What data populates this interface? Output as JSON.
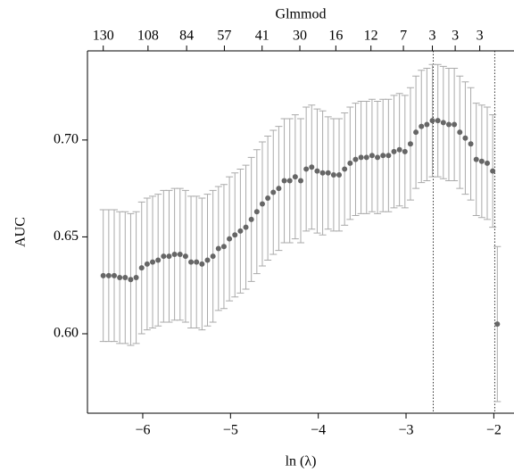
{
  "chart_data": {
    "type": "errorbar",
    "title": "Glmmod",
    "x_label": "ln (λ)",
    "y_label": "AUC",
    "color": "#666666",
    "error_color": "#aaaaaa",
    "x": [
      -6.45,
      -6.3875,
      -6.325,
      -6.2625,
      -6.2,
      -6.1375,
      -6.075,
      -6.0125,
      -5.95,
      -5.8875,
      -5.825,
      -5.7625,
      -5.7,
      -5.6375,
      -5.575,
      -5.5125,
      -5.45,
      -5.3875,
      -5.325,
      -5.2625,
      -5.2,
      -5.1375,
      -5.075,
      -5.0125,
      -4.95,
      -4.8875,
      -4.825,
      -4.7625,
      -4.7,
      -4.6375,
      -4.575,
      -4.5125,
      -4.45,
      -4.3875,
      -4.325,
      -4.2625,
      -4.2,
      -4.1375,
      -4.075,
      -4.0125,
      -3.95,
      -3.8875,
      -3.825,
      -3.7625,
      -3.7,
      -3.6375,
      -3.575,
      -3.5125,
      -3.45,
      -3.3875,
      -3.325,
      -3.2625,
      -3.2,
      -3.1375,
      -3.075,
      -3.0125,
      -2.95,
      -2.8875,
      -2.825,
      -2.7625,
      -2.7,
      -2.6375,
      -2.575,
      -2.5125,
      -2.45,
      -2.3875,
      -2.325,
      -2.2625,
      -2.2,
      -2.1375,
      -2.075,
      -2.0125,
      -1.96
    ],
    "values": [
      0.63,
      0.63,
      0.63,
      0.629,
      0.629,
      0.628,
      0.629,
      0.634,
      0.636,
      0.637,
      0.638,
      0.64,
      0.64,
      0.641,
      0.641,
      0.64,
      0.637,
      0.637,
      0.636,
      0.638,
      0.64,
      0.644,
      0.645,
      0.649,
      0.651,
      0.653,
      0.655,
      0.659,
      0.663,
      0.667,
      0.67,
      0.673,
      0.675,
      0.679,
      0.679,
      0.681,
      0.679,
      0.685,
      0.686,
      0.684,
      0.683,
      0.683,
      0.682,
      0.682,
      0.685,
      0.688,
      0.69,
      0.691,
      0.691,
      0.692,
      0.691,
      0.692,
      0.692,
      0.694,
      0.695,
      0.694,
      0.698,
      0.704,
      0.707,
      0.708,
      0.71,
      0.71,
      0.709,
      0.708,
      0.708,
      0.704,
      0.701,
      0.698,
      0.69,
      0.689,
      0.688,
      0.684,
      0.605
    ],
    "errors": [
      0.034,
      0.034,
      0.034,
      0.034,
      0.034,
      0.034,
      0.034,
      0.034,
      0.034,
      0.034,
      0.034,
      0.034,
      0.034,
      0.034,
      0.034,
      0.034,
      0.034,
      0.034,
      0.034,
      0.034,
      0.034,
      0.032,
      0.032,
      0.032,
      0.032,
      0.032,
      0.032,
      0.032,
      0.032,
      0.032,
      0.032,
      0.032,
      0.032,
      0.032,
      0.032,
      0.032,
      0.032,
      0.032,
      0.032,
      0.032,
      0.032,
      0.029,
      0.029,
      0.029,
      0.029,
      0.029,
      0.029,
      0.029,
      0.029,
      0.029,
      0.029,
      0.029,
      0.029,
      0.029,
      0.029,
      0.029,
      0.029,
      0.029,
      0.029,
      0.029,
      0.029,
      0.029,
      0.029,
      0.029,
      0.029,
      0.029,
      0.029,
      0.029,
      0.029,
      0.029,
      0.029,
      0.029,
      0.04
    ],
    "xlim": [
      -6.63,
      -1.77
    ],
    "ylim": [
      0.559,
      0.746
    ],
    "xticks": [
      {
        "value": -6,
        "label": "−6"
      },
      {
        "value": -5,
        "label": "−5"
      },
      {
        "value": -4,
        "label": "−4"
      },
      {
        "value": -3,
        "label": "−3"
      },
      {
        "value": -2,
        "label": "−2"
      }
    ],
    "yticks": [
      {
        "value": 0.6,
        "label": "0.60"
      },
      {
        "value": 0.65,
        "label": "0.65"
      },
      {
        "value": 0.7,
        "label": "0.70"
      }
    ],
    "top_ticks": [
      {
        "value": -6.45,
        "label": "130"
      },
      {
        "value": -5.94,
        "label": "108"
      },
      {
        "value": -5.5,
        "label": "84"
      },
      {
        "value": -5.07,
        "label": "57"
      },
      {
        "value": -4.64,
        "label": "41"
      },
      {
        "value": -4.21,
        "label": "30"
      },
      {
        "value": -3.8,
        "label": "16"
      },
      {
        "value": -3.4,
        "label": "12"
      },
      {
        "value": -3.03,
        "label": "7"
      },
      {
        "value": -2.7,
        "label": "3"
      },
      {
        "value": -2.44,
        "label": "3"
      },
      {
        "value": -2.16,
        "label": "3"
      }
    ],
    "vlines": [
      -2.69,
      -1.99
    ]
  }
}
